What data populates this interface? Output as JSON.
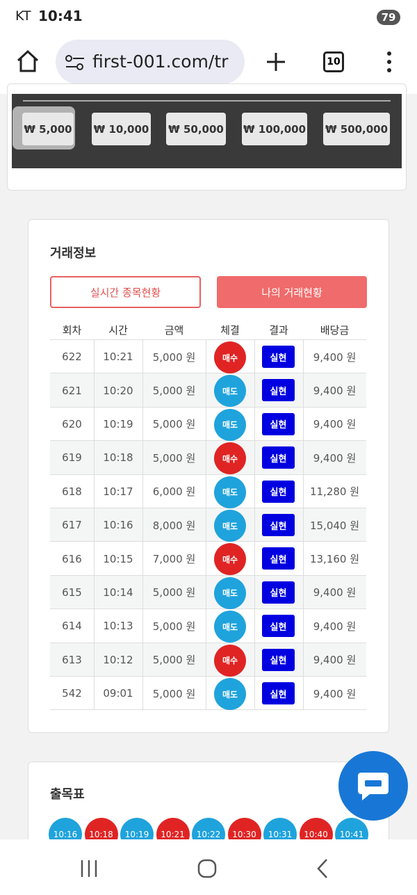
{
  "status_bar": {
    "carrier": "KT",
    "time": "10:41",
    "battery": "79"
  },
  "browser": {
    "url": "first-001.com/tr",
    "tab_count": "10"
  },
  "amount_buttons": [
    "₩ 5,000",
    "₩ 10,000",
    "₩ 50,000",
    "₩ 100,000",
    "₩ 500,000"
  ],
  "trade_info": {
    "title": "거래정보",
    "tab_live": "실시간 종목현황",
    "tab_mine": "나의 거래현황",
    "headers": [
      "회차",
      "시간",
      "금액",
      "체결",
      "결과",
      "배당금"
    ],
    "rows": [
      {
        "round": "622",
        "time": "10:21",
        "amount": "5,000 원",
        "side": "매수",
        "side_color": "#e02424",
        "result": "실현",
        "payout": "9,400 원"
      },
      {
        "round": "621",
        "time": "10:20",
        "amount": "5,000 원",
        "side": "매도",
        "side_color": "#1fa3dc",
        "result": "실현",
        "payout": "9,400 원"
      },
      {
        "round": "620",
        "time": "10:19",
        "amount": "5,000 원",
        "side": "매도",
        "side_color": "#1fa3dc",
        "result": "실현",
        "payout": "9,400 원"
      },
      {
        "round": "619",
        "time": "10:18",
        "amount": "5,000 원",
        "side": "매수",
        "side_color": "#e02424",
        "result": "실현",
        "payout": "9,400 원"
      },
      {
        "round": "618",
        "time": "10:17",
        "amount": "6,000 원",
        "side": "매도",
        "side_color": "#1fa3dc",
        "result": "실현",
        "payout": "11,280 원"
      },
      {
        "round": "617",
        "time": "10:16",
        "amount": "8,000 원",
        "side": "매도",
        "side_color": "#1fa3dc",
        "result": "실현",
        "payout": "15,040 원"
      },
      {
        "round": "616",
        "time": "10:15",
        "amount": "7,000 원",
        "side": "매수",
        "side_color": "#e02424",
        "result": "실현",
        "payout": "13,160 원"
      },
      {
        "round": "615",
        "time": "10:14",
        "amount": "5,000 원",
        "side": "매도",
        "side_color": "#1fa3dc",
        "result": "실현",
        "payout": "9,400 원"
      },
      {
        "round": "614",
        "time": "10:13",
        "amount": "5,000 원",
        "side": "매도",
        "side_color": "#1fa3dc",
        "result": "실현",
        "payout": "9,400 원"
      },
      {
        "round": "613",
        "time": "10:12",
        "amount": "5,000 원",
        "side": "매수",
        "side_color": "#e02424",
        "result": "실현",
        "payout": "9,400 원"
      },
      {
        "round": "542",
        "time": "09:01",
        "amount": "5,000 원",
        "side": "매도",
        "side_color": "#1fa3dc",
        "result": "실현",
        "payout": "9,400 원"
      }
    ]
  },
  "chart_table": {
    "title": "출목표",
    "items": [
      {
        "time": "10:16",
        "color": "#1fa3dc"
      },
      {
        "time": "10:18",
        "color": "#e02424"
      },
      {
        "time": "10:19",
        "color": "#1fa3dc"
      },
      {
        "time": "10:21",
        "color": "#e02424"
      },
      {
        "time": "10:22",
        "color": "#1fa3dc"
      },
      {
        "time": "10:30",
        "color": "#e02424"
      },
      {
        "time": "10:31",
        "color": "#1fa3dc"
      },
      {
        "time": "10:40",
        "color": "#e02424"
      },
      {
        "time": "10:41",
        "color": "#1fa3dc"
      }
    ]
  }
}
